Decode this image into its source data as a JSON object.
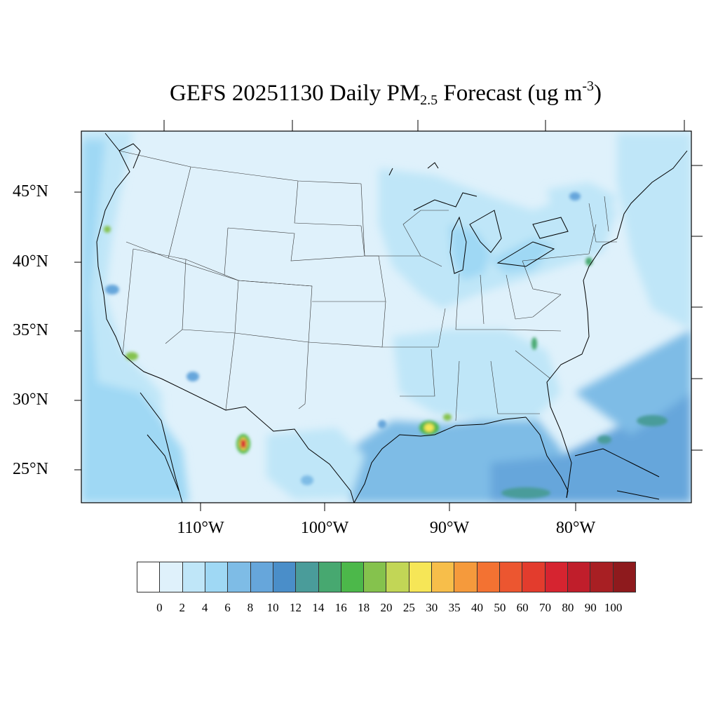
{
  "title": {
    "prefix": "GEFS 20251130 Daily PM",
    "subscript": "2.5",
    "middle": " Forecast (ug m",
    "superscript": "-3",
    "suffix": ")"
  },
  "map": {
    "projection": "lambert-conformal",
    "region": "CONUS",
    "lat_labels": [
      "45°N",
      "40°N",
      "35°N",
      "30°N",
      "25°N"
    ],
    "lon_labels": [
      "110°W",
      "100°W",
      "90°W",
      "80°W"
    ],
    "coastline_color": "#000000",
    "state_border_color": "#333333"
  },
  "colorbar": {
    "labels": [
      "0",
      "2",
      "4",
      "6",
      "8",
      "10",
      "12",
      "14",
      "16",
      "18",
      "20",
      "25",
      "30",
      "35",
      "40",
      "50",
      "60",
      "70",
      "80",
      "90",
      "100"
    ],
    "colors": [
      "#ffffff",
      "#dff1fb",
      "#bfe6f8",
      "#9fd8f4",
      "#7ebce6",
      "#66a6db",
      "#4a8ec9",
      "#4a9c9a",
      "#47a870",
      "#4cb84a",
      "#85c24d",
      "#c2d656",
      "#f6e657",
      "#f7be4a",
      "#f59a3c",
      "#f37232",
      "#ec5630",
      "#e33c2d",
      "#d62430",
      "#c01e2b",
      "#a81f23",
      "#8e1a1d"
    ]
  },
  "chart_data": {
    "type": "heatmap",
    "title": "GEFS 20251130 Daily PM2.5 Forecast (ug m-3)",
    "xlabel": "",
    "ylabel": "",
    "units": "ug m-3",
    "levels": [
      0,
      2,
      4,
      6,
      8,
      10,
      12,
      14,
      16,
      18,
      20,
      25,
      30,
      35,
      40,
      50,
      60,
      70,
      80,
      90,
      100
    ],
    "lat_ticks": [
      45,
      40,
      35,
      30,
      25
    ],
    "lon_ticks": [
      -110,
      -100,
      -90,
      -80
    ],
    "hotspots": [
      {
        "region": "West Texas / Chihuahua border",
        "value": 70
      },
      {
        "region": "Southeast Louisiana",
        "value": 30
      },
      {
        "region": "Mississippi Gulf coast",
        "value": 20
      },
      {
        "region": "Southern California",
        "value": 16
      },
      {
        "region": "Western North Carolina",
        "value": 16
      },
      {
        "region": "Southern Oregon",
        "value": 16
      },
      {
        "region": "Caribbean Sea (Cuba south)",
        "value": 14
      },
      {
        "region": "Atlantic east of Florida",
        "value": 14
      }
    ]
  }
}
